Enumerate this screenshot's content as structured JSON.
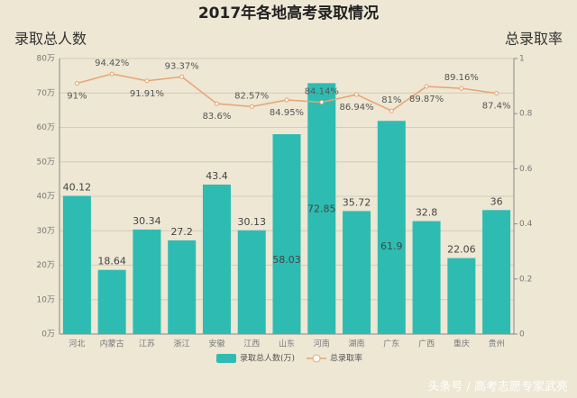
{
  "chart_data": {
    "type": "bar-line",
    "title": "2017年各地高考录取情况",
    "y_label": "录取总人数",
    "y2_label": "总录取率",
    "categories": [
      "河北",
      "内蒙古",
      "江苏",
      "浙江",
      "安徽",
      "江西",
      "山东",
      "河南",
      "湖南",
      "广东",
      "广西",
      "重庆",
      "贵州"
    ],
    "series": [
      {
        "name": "录取总人数(万)",
        "type": "bar",
        "color": "#2ebcb2",
        "values": [
          40.12,
          18.64,
          30.34,
          27.2,
          43.4,
          30.13,
          58.03,
          72.85,
          35.72,
          61.9,
          32.8,
          22.06,
          36
        ]
      },
      {
        "name": "总录取率",
        "type": "line",
        "axis": "y2",
        "color": "#e9a36f",
        "values": [
          0.91,
          0.9442,
          0.9191,
          0.9337,
          0.836,
          0.8257,
          0.8495,
          0.8414,
          0.8694,
          0.81,
          0.8987,
          0.8916,
          0.874
        ],
        "value_labels": [
          "91%",
          "94.42%",
          "91.91%",
          "93.37%",
          "83.6%",
          "82.57%",
          "84.95%",
          "84.14%",
          "86.94%",
          "81%",
          "89.87%",
          "89.16%",
          "87.4%"
        ]
      }
    ],
    "ylim": [
      0,
      80
    ],
    "yticks": [
      {
        "value": 0,
        "label": "0万"
      },
      {
        "value": 10,
        "label": "10万"
      },
      {
        "value": 20,
        "label": "20万"
      },
      {
        "value": 30,
        "label": "30万"
      },
      {
        "value": 40,
        "label": "40万"
      },
      {
        "value": 50,
        "label": "50万"
      },
      {
        "value": 60,
        "label": "60万"
      },
      {
        "value": 70,
        "label": "70万"
      },
      {
        "value": 80,
        "label": "80万"
      }
    ],
    "y2lim": [
      0,
      1
    ],
    "y2ticks": [
      0,
      0.2,
      0.4,
      0.6,
      0.8,
      1
    ],
    "grid": true,
    "legend": "bottom",
    "watermark": "头条号 / 高考志愿专家武亮"
  }
}
